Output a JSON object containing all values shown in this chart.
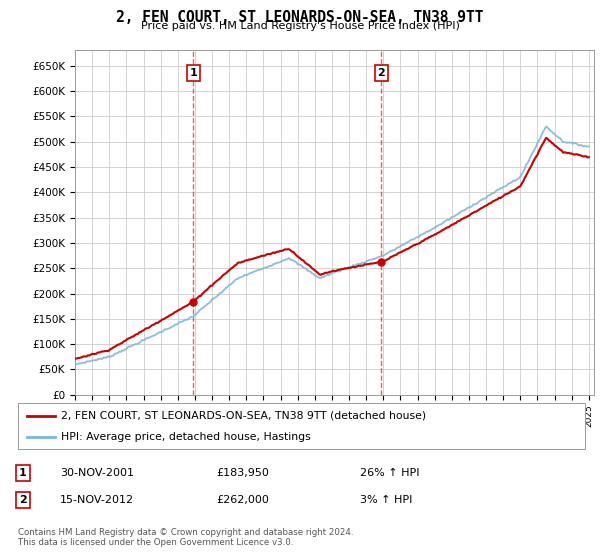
{
  "title": "2, FEN COURT, ST LEONARDS-ON-SEA, TN38 9TT",
  "subtitle": "Price paid vs. HM Land Registry's House Price Index (HPI)",
  "ylim": [
    0,
    680000
  ],
  "yticks": [
    0,
    50000,
    100000,
    150000,
    200000,
    250000,
    300000,
    350000,
    400000,
    450000,
    500000,
    550000,
    600000,
    650000
  ],
  "background_color": "#ffffff",
  "grid_color": "#cccccc",
  "sale1_year": 2001.917,
  "sale1_price": 183950,
  "sale2_year": 2012.875,
  "sale2_price": 262000,
  "xmin": 1995,
  "xmax": 2025.3,
  "red_color": "#cc0000",
  "blue_color": "#7ab8d9",
  "legend_red": "2, FEN COURT, ST LEONARDS-ON-SEA, TN38 9TT (detached house)",
  "legend_blue": "HPI: Average price, detached house, Hastings",
  "footer": "Contains HM Land Registry data © Crown copyright and database right 2024.\nThis data is licensed under the Open Government Licence v3.0.",
  "table_rows": [
    {
      "num": "1",
      "date": "30-NOV-2001",
      "price": "£183,950",
      "hpi": "26% ↑ HPI"
    },
    {
      "num": "2",
      "date": "15-NOV-2012",
      "price": "£262,000",
      "hpi": "3% ↑ HPI"
    }
  ]
}
